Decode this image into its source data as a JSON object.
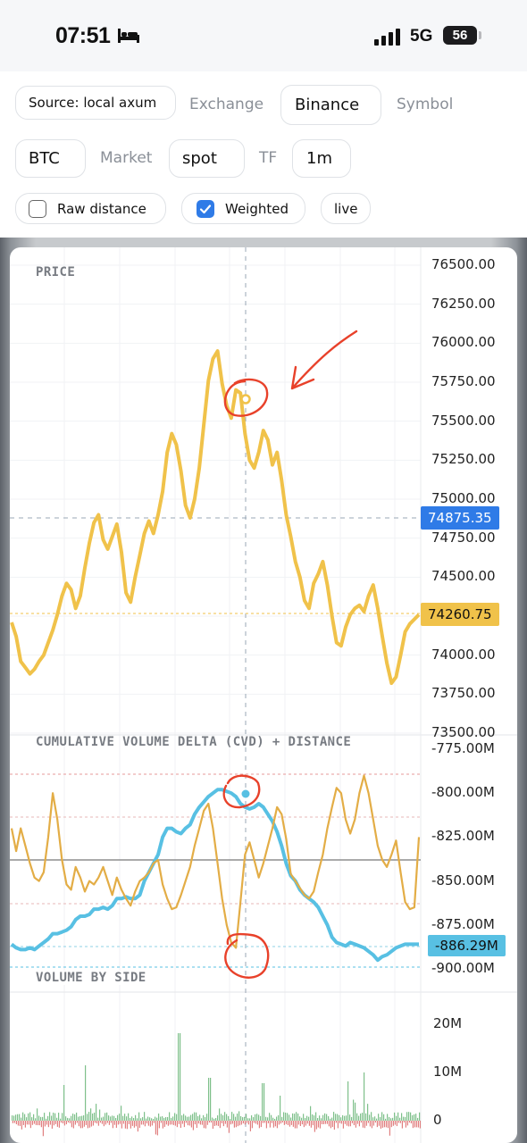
{
  "status_bar": {
    "time": "07:51",
    "network": "5G",
    "battery": "56"
  },
  "controls": {
    "source_label": "Source: local axum",
    "exchange_label": "Exchange",
    "exchange_value": "Binance",
    "symbol_label": "Symbol",
    "symbol_value": "BTC",
    "market_label": "Market",
    "market_value": "spot",
    "tf_label": "TF",
    "tf_value": "1m",
    "raw_distance_label": "Raw distance",
    "raw_distance_checked": false,
    "weighted_label": "Weighted",
    "weighted_checked": true,
    "live_label": "live"
  },
  "colors": {
    "price_line": "#f0c24a",
    "cvd_line": "#58c0e3",
    "highlight_badge": "#2f7be7",
    "annotation": "#e8412a",
    "buy_bar": "#7ec08a",
    "sell_bar": "#e07f7f"
  },
  "price_panel": {
    "title": "PRICE",
    "y_ticks": [
      "76500.00",
      "76250.00",
      "76000.00",
      "75750.00",
      "75500.00",
      "75250.00",
      "75000.00",
      "74750.00",
      "74500.00",
      "74250.00",
      "74000.00",
      "73750.00",
      "73500.00"
    ],
    "crosshair_value": "74875.35",
    "last_value": "74260.75"
  },
  "cvd_panel": {
    "title": "CUMULATIVE VOLUME DELTA (CVD) + DISTANCE",
    "y_ticks": [
      "-775.00M",
      "-800.00M",
      "-825.00M",
      "-850.00M",
      "-875.00M",
      "-900.00M"
    ],
    "last_value": "-886.29M"
  },
  "volume_panel": {
    "title": "VOLUME BY SIDE",
    "y_ticks": [
      "20M",
      "10M",
      "0"
    ]
  },
  "chart_data": [
    {
      "type": "line",
      "series": [
        {
          "values": [
            74210,
            74120,
            73960,
            73920,
            73880,
            73910,
            73960,
            74000,
            74080,
            74160,
            74260,
            74380,
            74460,
            74420,
            74300,
            74380,
            74560,
            74720,
            74850,
            74900,
            74740,
            74680,
            74760,
            74840,
            74660,
            74400,
            74340,
            74500,
            74640,
            74780,
            74860,
            74780,
            74900,
            75050,
            75300,
            75420,
            75350,
            75180,
            74960,
            74880,
            75000,
            75200,
            75480,
            75760,
            75900,
            75950,
            75740,
            75600,
            75520,
            75700,
            75680,
            75420,
            75250,
            75200,
            75300,
            75440,
            75380,
            75220,
            75300,
            75120,
            74900,
            74760,
            74600,
            74500,
            74350,
            74300,
            74460,
            74520,
            74600,
            74450,
            74250,
            74080,
            74060,
            74180,
            74260,
            74300,
            74320,
            74280,
            74380,
            74450,
            74300,
            74120,
            73950,
            73820,
            73860,
            74000,
            74150,
            74200,
            74230,
            74260
          ]
        }
      ],
      "ylim": [
        73500,
        76500
      ]
    },
    {
      "type": "line",
      "series": [
        {
          "values": [
            -886,
            -888,
            -889,
            -889,
            -888,
            -889,
            -887,
            -885,
            -883,
            -880,
            -880,
            -879,
            -878,
            -876,
            -872,
            -870,
            -870,
            -869,
            -866,
            -866,
            -865,
            -866,
            -864,
            -860,
            -860,
            -859,
            -860,
            -860,
            -858,
            -850,
            -845,
            -840,
            -835,
            -825,
            -820,
            -820,
            -822,
            -823,
            -820,
            -818,
            -812,
            -808,
            -805,
            -802,
            -800,
            -798,
            -798,
            -799,
            -800,
            -802,
            -806,
            -808,
            -809,
            -808,
            -806,
            -808,
            -812,
            -816,
            -822,
            -830,
            -840,
            -847,
            -850,
            -855,
            -858,
            -860,
            -862,
            -865,
            -870,
            -875,
            -882,
            -885,
            -886,
            -887,
            -885,
            -886,
            -887,
            -888,
            -890,
            -892,
            -895,
            -893,
            -892,
            -890,
            -888,
            -887,
            -886,
            -886,
            -886,
            -886
          ]
        },
        {
          "values": [
            -820,
            -833,
            -820,
            -830,
            -840,
            -848,
            -850,
            -845,
            -825,
            -800,
            -815,
            -838,
            -852,
            -855,
            -842,
            -848,
            -856,
            -850,
            -852,
            -848,
            -842,
            -850,
            -858,
            -848,
            -855,
            -860,
            -864,
            -856,
            -850,
            -848,
            -845,
            -840,
            -838,
            -852,
            -860,
            -866,
            -865,
            -858,
            -850,
            -842,
            -830,
            -820,
            -810,
            -806,
            -820,
            -840,
            -860,
            -875,
            -885,
            -888,
            -862,
            -835,
            -828,
            -838,
            -848,
            -840,
            -830,
            -820,
            -808,
            -812,
            -826,
            -846,
            -850,
            -854,
            -858,
            -860,
            -856,
            -845,
            -835,
            -820,
            -808,
            -797,
            -800,
            -815,
            -823,
            -815,
            -800,
            -790,
            -800,
            -815,
            -830,
            -838,
            -842,
            -835,
            -827,
            -845,
            -862,
            -866,
            -865,
            -825
          ]
        }
      ],
      "ylim": [
        -900,
        -775
      ]
    },
    {
      "type": "bar",
      "ylim": [
        -3,
        25
      ]
    }
  ]
}
